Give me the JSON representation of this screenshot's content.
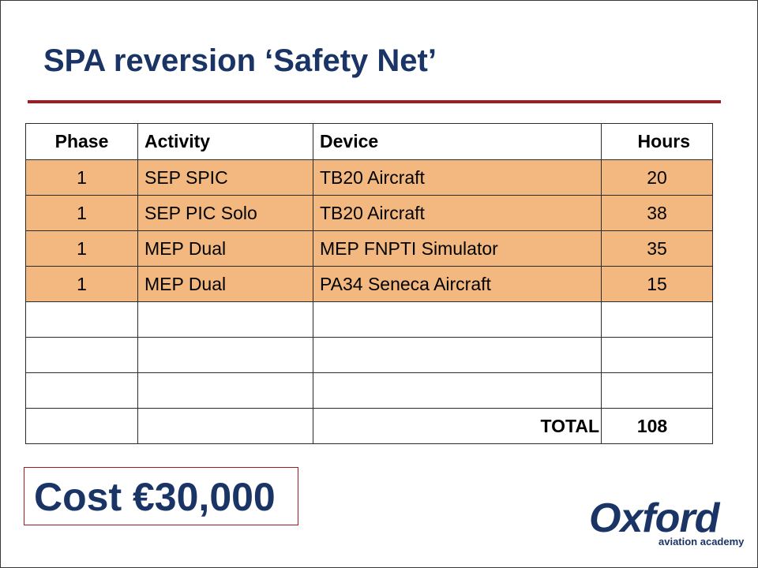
{
  "slide": {
    "title": "SPA reversion ‘Safety Net’"
  },
  "table": {
    "headers": {
      "phase": "Phase",
      "activity": "Activity",
      "device": "Device",
      "hours": "Hours"
    },
    "rows": [
      {
        "phase": "1",
        "activity": "SEP SPIC",
        "device": "TB20 Aircraft",
        "hours": "20"
      },
      {
        "phase": "1",
        "activity": "SEP PIC Solo",
        "device": "TB20 Aircraft",
        "hours": "38"
      },
      {
        "phase": "1",
        "activity": "MEP Dual",
        "device": "MEP FNPTI Simulator",
        "hours": "35"
      },
      {
        "phase": "1",
        "activity": "MEP Dual",
        "device": "PA34 Seneca Aircraft",
        "hours": "15"
      }
    ],
    "total_label": "TOTAL",
    "total_value": "108"
  },
  "cost": {
    "text": "Cost €30,000"
  },
  "logo": {
    "name": "Oxford",
    "tagline": "aviation academy"
  },
  "colors": {
    "title": "#1a3466",
    "rule": "#a01c20",
    "row_fill": "#f2b880"
  }
}
